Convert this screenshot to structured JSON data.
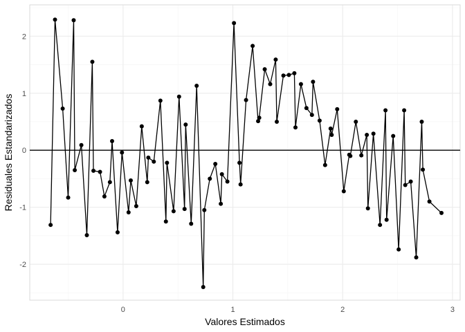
{
  "chart_data": {
    "type": "scatter",
    "title": "",
    "xlabel": "Valores Estimados",
    "ylabel": "Residuales Estandarizados",
    "xlim": [
      -0.85,
      3.07
    ],
    "ylim": [
      -2.63,
      2.55
    ],
    "x_ticks": [
      0,
      1,
      2,
      3
    ],
    "x_tick_labels": [
      "0",
      "1",
      "2",
      "3"
    ],
    "y_ticks": [
      -2,
      -1,
      0,
      1,
      2
    ],
    "y_tick_labels": [
      "-2",
      "-1",
      "0",
      "1",
      "2"
    ],
    "grid": true,
    "hline": 0,
    "colors": {
      "series": "#000000",
      "grid_major": "#ebebeb",
      "grid_minor": "#f5f5f5",
      "border": "#d9d9d9"
    },
    "series": [
      {
        "x": [
          -0.66,
          -0.62,
          -0.55,
          -0.5,
          -0.45,
          -0.44,
          -0.38,
          -0.33,
          -0.28,
          -0.27,
          -0.21,
          -0.17,
          -0.12,
          -0.1,
          -0.05,
          -0.01,
          0.05,
          0.07,
          0.12,
          0.17,
          0.22,
          0.23,
          0.28,
          0.34,
          0.39,
          0.4,
          0.46,
          0.51,
          0.56,
          0.57,
          0.62,
          0.67,
          0.73,
          0.74,
          0.79,
          0.84,
          0.89,
          0.9,
          0.95,
          1.01,
          1.06,
          1.07,
          1.12,
          1.18,
          1.23,
          1.24,
          1.29,
          1.34,
          1.39,
          1.4,
          1.46,
          1.51,
          1.56,
          1.57,
          1.62,
          1.67,
          1.72,
          1.73,
          1.79,
          1.84,
          1.89,
          1.9,
          1.95,
          2.01,
          2.06,
          2.07,
          2.12,
          2.17,
          2.22,
          2.23,
          2.28,
          2.34,
          2.39,
          2.4,
          2.46,
          2.51,
          2.56,
          2.57,
          2.62,
          2.67,
          2.72,
          2.73,
          2.79,
          2.9
        ],
        "y": [
          -1.31,
          2.29,
          0.73,
          -0.83,
          2.28,
          -0.35,
          0.09,
          -1.49,
          1.55,
          -0.36,
          -0.38,
          -0.81,
          -0.56,
          0.16,
          -1.44,
          -0.04,
          -1.09,
          -0.53,
          -0.98,
          0.42,
          -0.56,
          -0.13,
          -0.2,
          0.87,
          -1.25,
          -0.22,
          -1.07,
          0.94,
          -1.03,
          0.45,
          -1.29,
          1.13,
          -2.4,
          -1.05,
          -0.5,
          -0.24,
          -0.94,
          -0.42,
          -0.55,
          2.23,
          -0.22,
          -0.6,
          0.88,
          1.83,
          0.51,
          0.57,
          1.42,
          1.16,
          1.59,
          0.5,
          1.31,
          1.32,
          1.35,
          0.4,
          1.16,
          0.74,
          0.62,
          1.2,
          0.52,
          -0.26,
          0.38,
          0.27,
          0.72,
          -0.72,
          -0.08,
          -0.1,
          0.5,
          -0.09,
          0.27,
          -1.02,
          0.29,
          -1.31,
          0.7,
          -1.22,
          0.25,
          -1.74,
          0.7,
          -0.61,
          -0.55,
          -1.88,
          0.5,
          -0.34,
          -0.9,
          -1.1
        ]
      }
    ]
  }
}
